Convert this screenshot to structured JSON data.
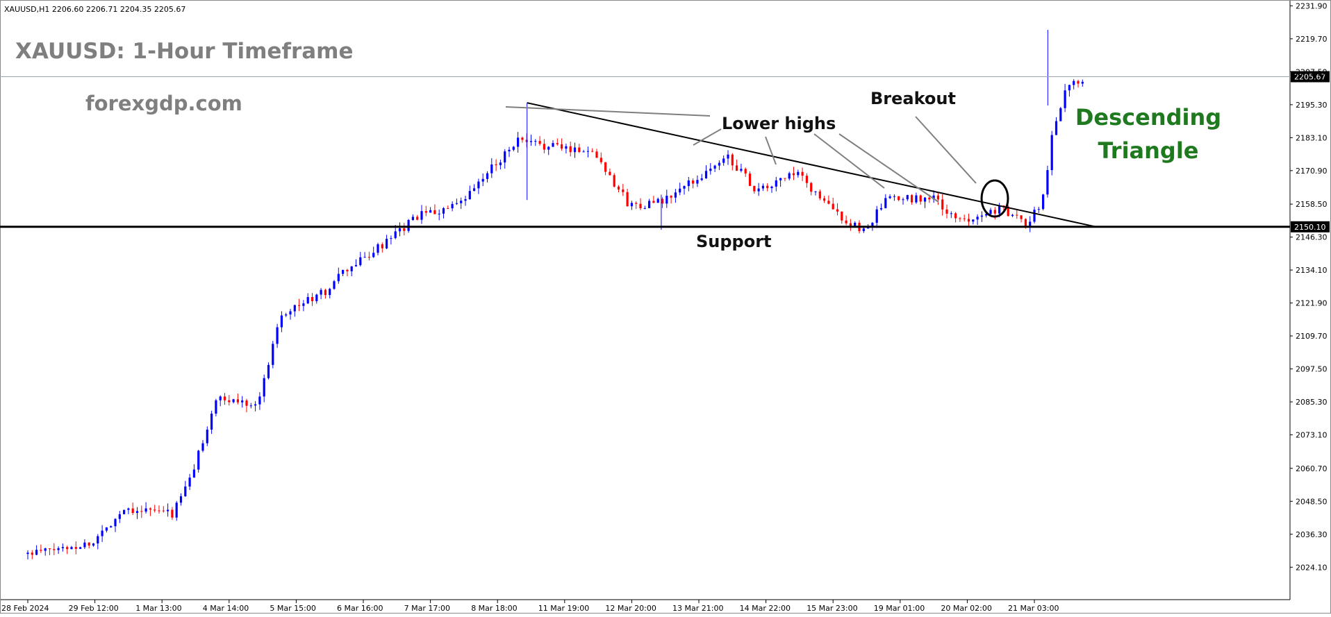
{
  "header": {
    "symbol_line": "XAUUSD,H1  2206.60 2206.71 2204.35 2205.67"
  },
  "overlay": {
    "title": "XAUUSD: 1-Hour Timeframe",
    "brand": "forexgdp.com",
    "pattern_line1": "Descending",
    "pattern_line2": "Triangle",
    "lower_highs": "Lower highs",
    "breakout": "Breakout",
    "support": "Support"
  },
  "colors": {
    "bull": "#0000ff",
    "bear": "#ff0000",
    "pattern": "#1f7a1f",
    "label_gray": "#7f7f7f",
    "line": "#000000"
  },
  "chart_data": {
    "type": "candlestick",
    "symbol": "XAUUSD",
    "timeframe": "H1",
    "ylim": [
      2018.0,
      2232.0
    ],
    "y_ticks": [
      "2231.90",
      "2219.70",
      "2207.50",
      "2195.30",
      "2183.10",
      "2170.90",
      "2158.50",
      "2146.30",
      "2134.10",
      "2121.90",
      "2109.70",
      "2097.50",
      "2085.30",
      "2073.10",
      "2060.70",
      "2048.50",
      "2036.30",
      "2024.10"
    ],
    "x_ticks": [
      "28 Feb 2024",
      "29 Feb 12:00",
      "1 Mar 13:00",
      "4 Mar 14:00",
      "5 Mar 15:00",
      "6 Mar 16:00",
      "7 Mar 17:00",
      "8 Mar 18:00",
      "11 Mar 19:00",
      "12 Mar 20:00",
      "13 Mar 21:00",
      "14 Mar 22:00",
      "15 Mar 23:00",
      "19 Mar 01:00",
      "20 Mar 02:00",
      "21 Mar 03:00"
    ],
    "current_price": "2205.67",
    "support_price": "2150.10",
    "support_level": 2150.1,
    "trendline": {
      "from": {
        "x": "8 Mar 18:00",
        "y": 2196.0
      },
      "to": {
        "x": "21 Mar 14:00",
        "y": 2150.1
      }
    },
    "anchors": [
      {
        "x": "28 Feb 2024",
        "y": 2029
      },
      {
        "x": "29 Feb 00:00",
        "y": 2033
      },
      {
        "x": "29 Feb 12:00",
        "y": 2046
      },
      {
        "x": "1 Mar 06:00",
        "y": 2044
      },
      {
        "x": "1 Mar 13:00",
        "y": 2058
      },
      {
        "x": "1 Mar 22:00",
        "y": 2086
      },
      {
        "x": "4 Mar 14:00",
        "y": 2085
      },
      {
        "x": "4 Mar 22:00",
        "y": 2118
      },
      {
        "x": "5 Mar 15:00",
        "y": 2126
      },
      {
        "x": "5 Mar 20:00",
        "y": 2132
      },
      {
        "x": "6 Mar 16:00",
        "y": 2146
      },
      {
        "x": "7 Mar 01:00",
        "y": 2154
      },
      {
        "x": "7 Mar 17:00",
        "y": 2158
      },
      {
        "x": "8 Mar 05:00",
        "y": 2172
      },
      {
        "x": "8 Mar 14:00",
        "y": 2182
      },
      {
        "x": "8 Mar 18:00",
        "y": 2181
      },
      {
        "x": "11 Mar 19:00",
        "y": 2178
      },
      {
        "x": "12 Mar 08:00",
        "y": 2158
      },
      {
        "x": "12 Mar 20:00",
        "y": 2159
      },
      {
        "x": "13 Mar 21:00",
        "y": 2176
      },
      {
        "x": "14 Mar 08:00",
        "y": 2163
      },
      {
        "x": "14 Mar 22:00",
        "y": 2170
      },
      {
        "x": "15 Mar 12:00",
        "y": 2156
      },
      {
        "x": "15 Mar 23:00",
        "y": 2148
      },
      {
        "x": "18 Mar 08:00",
        "y": 2160
      },
      {
        "x": "19 Mar 01:00",
        "y": 2161
      },
      {
        "x": "19 Mar 10:00",
        "y": 2152
      },
      {
        "x": "20 Mar 02:00",
        "y": 2157
      },
      {
        "x": "20 Mar 12:00",
        "y": 2151
      },
      {
        "x": "20 Mar 18:00",
        "y": 2160
      },
      {
        "x": "20 Mar 22:00",
        "y": 2186
      },
      {
        "x": "21 Mar 03:00",
        "y": 2203
      },
      {
        "x": "21 Mar 10:00",
        "y": 2205.67
      }
    ],
    "spikes": [
      {
        "x": "8 Mar 18:00",
        "high": 2196,
        "low": 2160
      },
      {
        "x": "20 Mar 20:00",
        "high": 2223,
        "low": 2195
      },
      {
        "x": "12 Mar 20:00",
        "high": 2162,
        "low": 2149
      }
    ]
  }
}
